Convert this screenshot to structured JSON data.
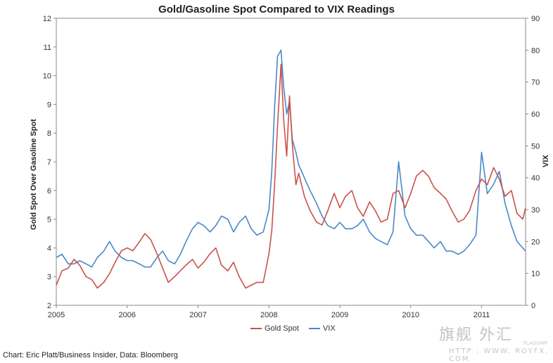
{
  "chart_data": {
    "type": "line",
    "title": "Gold/Gasoline Spot Compared to VIX Readings",
    "xlabel": "",
    "ylabel": "Gold  Spot Over Gasoline  Spot",
    "y2label": "VIX",
    "xlim": [
      2005.0,
      2011.62
    ],
    "ylim": [
      2,
      12
    ],
    "y2lim": [
      0,
      90
    ],
    "x_ticks": [
      "2005",
      "2006",
      "2007",
      "2008",
      "2009",
      "2010",
      "2011"
    ],
    "y_ticks": [
      2,
      3,
      4,
      5,
      6,
      7,
      8,
      9,
      10,
      11,
      12
    ],
    "y2_ticks": [
      0,
      10,
      20,
      30,
      40,
      50,
      60,
      70,
      80,
      90
    ],
    "grid": false,
    "legend_position": "bottom",
    "series": [
      {
        "name": "Gold Spot",
        "axis": "left",
        "color": "#c9524a",
        "x": [
          2005.0,
          2005.08,
          2005.17,
          2005.25,
          2005.33,
          2005.42,
          2005.5,
          2005.58,
          2005.67,
          2005.75,
          2005.83,
          2005.92,
          2006.0,
          2006.08,
          2006.17,
          2006.25,
          2006.33,
          2006.42,
          2006.5,
          2006.58,
          2006.67,
          2006.75,
          2006.83,
          2006.92,
          2007.0,
          2007.08,
          2007.17,
          2007.25,
          2007.33,
          2007.42,
          2007.5,
          2007.58,
          2007.67,
          2007.75,
          2007.83,
          2007.92,
          2008.0,
          2008.04,
          2008.08,
          2008.12,
          2008.17,
          2008.21,
          2008.25,
          2008.29,
          2008.33,
          2008.38,
          2008.42,
          2008.5,
          2008.58,
          2008.67,
          2008.75,
          2008.83,
          2008.92,
          2009.0,
          2009.08,
          2009.17,
          2009.25,
          2009.33,
          2009.42,
          2009.5,
          2009.58,
          2009.67,
          2009.75,
          2009.83,
          2009.92,
          2010.0,
          2010.08,
          2010.17,
          2010.25,
          2010.33,
          2010.42,
          2010.5,
          2010.58,
          2010.67,
          2010.75,
          2010.83,
          2010.92,
          2011.0,
          2011.08,
          2011.17,
          2011.25,
          2011.33,
          2011.42,
          2011.5,
          2011.58,
          2011.62
        ],
        "values": [
          2.7,
          3.2,
          3.3,
          3.6,
          3.4,
          3.0,
          2.9,
          2.6,
          2.8,
          3.1,
          3.5,
          3.9,
          4.0,
          3.9,
          4.2,
          4.5,
          4.3,
          3.8,
          3.3,
          2.8,
          3.0,
          3.2,
          3.4,
          3.6,
          3.3,
          3.5,
          3.8,
          4.0,
          3.4,
          3.2,
          3.5,
          3.0,
          2.6,
          2.7,
          2.8,
          2.8,
          3.8,
          4.6,
          6.2,
          8.2,
          10.4,
          8.4,
          7.2,
          9.3,
          7.6,
          6.2,
          6.6,
          5.8,
          5.3,
          4.9,
          4.8,
          5.3,
          5.9,
          5.4,
          5.8,
          6.0,
          5.4,
          5.1,
          5.6,
          5.3,
          4.9,
          5.0,
          5.9,
          6.0,
          5.4,
          5.9,
          6.5,
          6.7,
          6.5,
          6.1,
          5.9,
          5.7,
          5.3,
          4.9,
          5.0,
          5.3,
          6.0,
          6.4,
          6.2,
          6.8,
          6.4,
          5.8,
          6.0,
          5.2,
          5.0,
          5.4
        ]
      },
      {
        "name": "VIX",
        "axis": "right",
        "color": "#4a88c8",
        "x": [
          2005.0,
          2005.08,
          2005.17,
          2005.25,
          2005.33,
          2005.42,
          2005.5,
          2005.58,
          2005.67,
          2005.75,
          2005.83,
          2005.92,
          2006.0,
          2006.08,
          2006.17,
          2006.25,
          2006.33,
          2006.42,
          2006.5,
          2006.58,
          2006.67,
          2006.75,
          2006.83,
          2006.92,
          2007.0,
          2007.08,
          2007.17,
          2007.25,
          2007.33,
          2007.42,
          2007.5,
          2007.58,
          2007.67,
          2007.75,
          2007.83,
          2007.92,
          2008.0,
          2008.04,
          2008.08,
          2008.12,
          2008.17,
          2008.21,
          2008.25,
          2008.29,
          2008.33,
          2008.38,
          2008.42,
          2008.5,
          2008.58,
          2008.67,
          2008.75,
          2008.83,
          2008.92,
          2009.0,
          2009.08,
          2009.17,
          2009.25,
          2009.33,
          2009.42,
          2009.5,
          2009.58,
          2009.67,
          2009.75,
          2009.83,
          2009.92,
          2010.0,
          2010.08,
          2010.17,
          2010.25,
          2010.33,
          2010.42,
          2010.5,
          2010.58,
          2010.67,
          2010.75,
          2010.83,
          2010.92,
          2011.0,
          2011.08,
          2011.17,
          2011.25,
          2011.33,
          2011.42,
          2011.5,
          2011.58,
          2011.62
        ],
        "values": [
          15,
          16,
          13,
          13,
          14,
          13,
          12,
          15,
          17,
          20,
          17,
          15,
          14,
          14,
          13,
          12,
          12,
          15,
          17,
          14,
          13,
          16,
          20,
          24,
          26,
          25,
          23,
          25,
          28,
          27,
          23,
          26,
          28,
          24,
          22,
          23,
          30,
          42,
          62,
          78,
          80,
          68,
          60,
          64,
          52,
          48,
          44,
          40,
          36,
          32,
          28,
          25,
          24,
          26,
          24,
          24,
          25,
          27,
          23,
          21,
          20,
          19,
          23,
          45,
          28,
          24,
          22,
          22,
          20,
          18,
          20,
          17,
          17,
          16,
          17,
          19,
          22,
          48,
          35,
          38,
          42,
          32,
          25,
          20,
          18,
          17
        ]
      }
    ]
  },
  "legend": {
    "gold_label": "Gold Spot",
    "vix_label": "VIX"
  },
  "source_text": "Chart: Eric Platt/Business Insider, Data: Bloomberg",
  "watermark": {
    "logo": "旗舰 外汇",
    "sub": "FLAGSHIP",
    "url": "HTTP : WWW. ROYFX. COM"
  }
}
